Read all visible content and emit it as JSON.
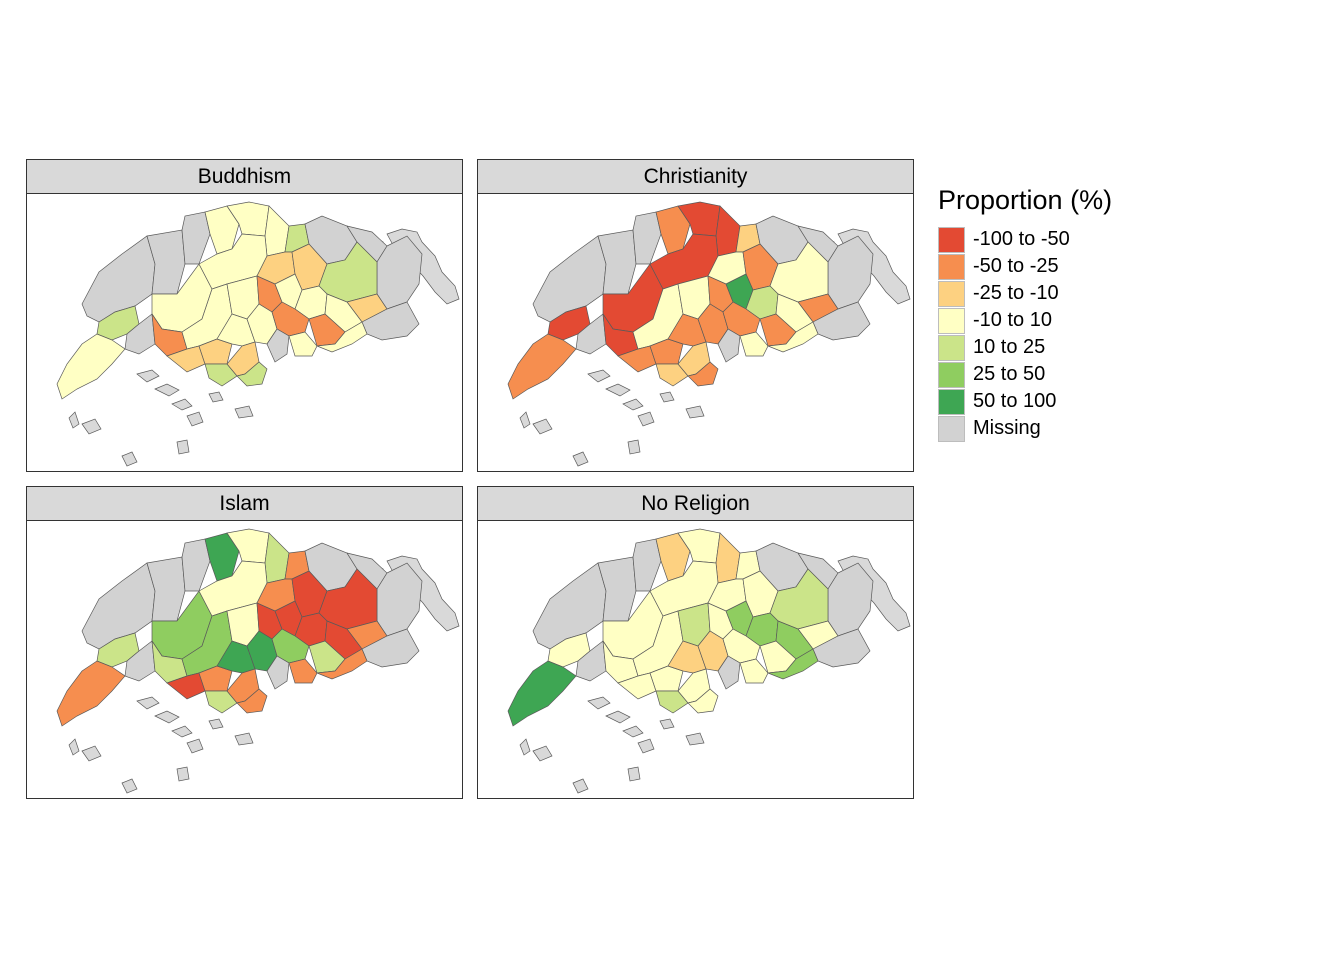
{
  "colors": {
    "c1": "#e34a33",
    "c2": "#f68e4f",
    "c3": "#fdd181",
    "c4": "#ffffc4",
    "c5": "#cbe489",
    "c6": "#8fcd60",
    "c7": "#3ea653",
    "missing": "#d2d2d2"
  },
  "legend": {
    "title": "Proportion (%)",
    "items": [
      {
        "label": "-100 to -50",
        "color": "#e34a33"
      },
      {
        "label": "-50 to -25",
        "color": "#f68e4f"
      },
      {
        "label": "-25 to -10",
        "color": "#fdd181"
      },
      {
        "label": "-10 to 10",
        "color": "#ffffc4"
      },
      {
        "label": "10 to 25",
        "color": "#cbe489"
      },
      {
        "label": "25 to 50",
        "color": "#8fcd60"
      },
      {
        "label": "50 to 100",
        "color": "#3ea653"
      },
      {
        "label": "Missing",
        "color": "#d2d2d2"
      }
    ]
  },
  "panels": [
    {
      "title": "Buddhism",
      "classes": [
        "missing",
        "missing",
        "missing",
        "c4",
        "c4",
        "c4",
        "c5",
        "missing",
        "missing",
        "missing",
        "c5",
        "c4",
        "c4",
        "c3",
        "c3",
        "c5",
        "c3",
        "missing",
        "c2",
        "c4",
        "c4",
        "c2",
        "c4",
        "c4",
        "c4",
        "missing",
        "c3",
        "c3",
        "c4",
        "c4",
        "c2",
        "c2",
        "c4",
        "c5",
        "c3",
        "c5",
        "missing",
        "c4",
        "c4"
      ]
    },
    {
      "title": "Christianity",
      "classes": [
        "missing",
        "missing",
        "missing",
        "c2",
        "c1",
        "c1",
        "c3",
        "missing",
        "missing",
        "missing",
        "c1",
        "c1",
        "c1",
        "c4",
        "c2",
        "c4",
        "c2",
        "missing",
        "c1",
        "c4",
        "c4",
        "c2",
        "c7",
        "c5",
        "c4",
        "missing",
        "c2",
        "c2",
        "c2",
        "c2",
        "c2",
        "c2",
        "c4",
        "c3",
        "c3",
        "c2",
        "missing",
        "c4",
        "c2"
      ]
    },
    {
      "title": "Islam",
      "classes": [
        "missing",
        "missing",
        "missing",
        "c7",
        "c4",
        "c5",
        "c2",
        "missing",
        "missing",
        "missing",
        "c5",
        "c6",
        "c4",
        "c2",
        "c1",
        "c1",
        "c2",
        "missing",
        "c5",
        "c6",
        "c4",
        "c1",
        "c1",
        "c1",
        "c1",
        "missing",
        "c1",
        "c2",
        "c7",
        "c7",
        "c6",
        "c5",
        "c2",
        "c5",
        "c2",
        "c2",
        "missing",
        "c2",
        "c2"
      ]
    },
    {
      "title": "No Religion",
      "classes": [
        "missing",
        "missing",
        "missing",
        "c3",
        "c4",
        "c3",
        "c4",
        "missing",
        "missing",
        "missing",
        "c4",
        "c4",
        "c4",
        "c4",
        "c4",
        "c5",
        "c4",
        "missing",
        "c4",
        "c4",
        "c5",
        "c4",
        "c6",
        "c6",
        "c6",
        "missing",
        "c4",
        "c4",
        "c3",
        "c3",
        "c4",
        "c4",
        "c6",
        "c5",
        "c4",
        "c4",
        "missing",
        "c4",
        "c7"
      ]
    }
  ]
}
